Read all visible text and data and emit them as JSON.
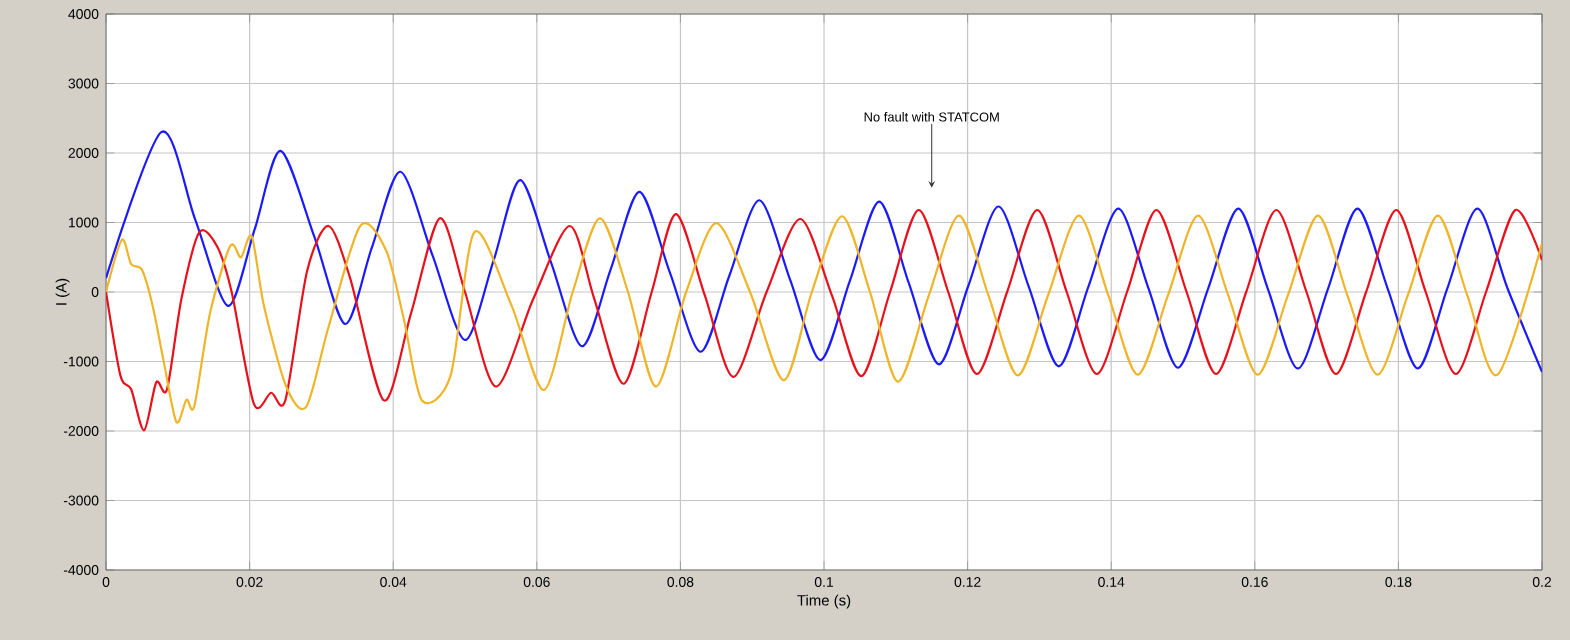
{
  "chart_data": {
    "type": "line",
    "xlabel": "Time (s)",
    "ylabel": "I (A)",
    "xlim": [
      0,
      0.2
    ],
    "ylim": [
      -4000,
      4000
    ],
    "xticks": [
      0,
      0.02,
      0.04,
      0.06,
      0.08,
      0.1,
      0.12,
      0.14,
      0.16,
      0.18,
      0.2
    ],
    "yticks": [
      -4000,
      -3000,
      -2000,
      -1000,
      0,
      1000,
      2000,
      3000,
      4000
    ],
    "grid": true,
    "marker": "none",
    "line_style": "solid",
    "annotations": [
      {
        "text": "No fault with STATCOM",
        "x": 0.115,
        "y": 1500
      }
    ],
    "series": [
      {
        "color": "#1a1aff",
        "x": [
          0,
          0.0077,
          0.0124,
          0.017,
          0.0207,
          0.0243,
          0.029,
          0.0333,
          0.037,
          0.041,
          0.0455,
          0.05,
          0.054,
          0.0577,
          0.062,
          0.0663,
          0.0703,
          0.0743,
          0.0785,
          0.0828,
          0.0868,
          0.091,
          0.0953,
          0.0995,
          0.1036,
          0.1077,
          0.1118,
          0.116,
          0.1201,
          0.1243,
          0.1285,
          0.1327,
          0.1368,
          0.141,
          0.1452,
          0.1493,
          0.1535,
          0.1577,
          0.1618,
          0.166,
          0.1702,
          0.1743,
          0.1785,
          0.1827,
          0.1868,
          0.191,
          0.1952,
          0.2
        ],
        "values": [
          200,
          2300,
          1050,
          -200,
          900,
          2030,
          800,
          -460,
          630,
          1730,
          520,
          -690,
          460,
          1610,
          420,
          -780,
          330,
          1440,
          290,
          -860,
          230,
          1320,
          170,
          -980,
          160,
          1300,
          130,
          -1040,
          90,
          1230,
          80,
          -1070,
          70,
          1200,
          50,
          -1090,
          50,
          1200,
          50,
          -1100,
          50,
          1200,
          50,
          -1100,
          50,
          1200,
          50,
          -1150
        ]
      },
      {
        "color": "#e8101a",
        "x": [
          0,
          0.002,
          0.0035,
          0.0053,
          0.007,
          0.0085,
          0.0105,
          0.013,
          0.0155,
          0.0175,
          0.0206,
          0.023,
          0.025,
          0.028,
          0.031,
          0.034,
          0.0387,
          0.0425,
          0.0465,
          0.05,
          0.0543,
          0.0595,
          0.0646,
          0.068,
          0.0721,
          0.076,
          0.0794,
          0.0834,
          0.0874,
          0.092,
          0.0967,
          0.1011,
          0.1052,
          0.1092,
          0.1132,
          0.1173,
          0.1213,
          0.1255,
          0.1297,
          0.1338,
          0.138,
          0.1422,
          0.1463,
          0.1505,
          0.1546,
          0.1588,
          0.163,
          0.1672,
          0.1713,
          0.1755,
          0.1797,
          0.1838,
          0.188,
          0.1922,
          0.1963,
          0.2
        ],
        "values": [
          0,
          -1200,
          -1400,
          -1990,
          -1300,
          -1400,
          -100,
          860,
          650,
          0,
          -1610,
          -1450,
          -1550,
          300,
          950,
          200,
          -1560,
          -300,
          1060,
          0,
          -1360,
          -100,
          950,
          -100,
          -1320,
          0,
          1120,
          -50,
          -1220,
          0,
          1050,
          -50,
          -1210,
          0,
          1180,
          0,
          -1180,
          0,
          1180,
          0,
          -1180,
          0,
          1180,
          0,
          -1180,
          0,
          1180,
          0,
          -1180,
          0,
          1180,
          0,
          -1180,
          0,
          1180,
          460
        ]
      },
      {
        "color": "#f0b429",
        "x": [
          0,
          0.0022,
          0.0035,
          0.005,
          0.0065,
          0.008,
          0.0098,
          0.0112,
          0.0123,
          0.0145,
          0.0173,
          0.0188,
          0.0203,
          0.022,
          0.0251,
          0.0279,
          0.031,
          0.0354,
          0.039,
          0.0415,
          0.044,
          0.048,
          0.0513,
          0.0565,
          0.061,
          0.065,
          0.0688,
          0.0727,
          0.0766,
          0.0808,
          0.085,
          0.0897,
          0.0944,
          0.0983,
          0.1025,
          0.1064,
          0.1103,
          0.1146,
          0.1188,
          0.1229,
          0.127,
          0.1312,
          0.1355,
          0.1396,
          0.1437,
          0.1479,
          0.1521,
          0.1563,
          0.1604,
          0.1646,
          0.1688,
          0.1729,
          0.1771,
          0.1813,
          0.1855,
          0.1896,
          0.1938,
          0.2
        ],
        "values": [
          0,
          750,
          400,
          320,
          -200,
          -980,
          -1870,
          -1550,
          -1640,
          -300,
          660,
          500,
          800,
          -200,
          -1360,
          -1650,
          -500,
          950,
          600,
          -400,
          -1560,
          -1200,
          860,
          -200,
          -1410,
          0,
          1060,
          0,
          -1360,
          0,
          990,
          0,
          -1270,
          0,
          1090,
          0,
          -1290,
          -50,
          1100,
          -50,
          -1200,
          -50,
          1100,
          -50,
          -1190,
          -50,
          1100,
          -50,
          -1190,
          -50,
          1100,
          -50,
          -1190,
          -50,
          1100,
          -50,
          -1190,
          700
        ]
      }
    ]
  }
}
